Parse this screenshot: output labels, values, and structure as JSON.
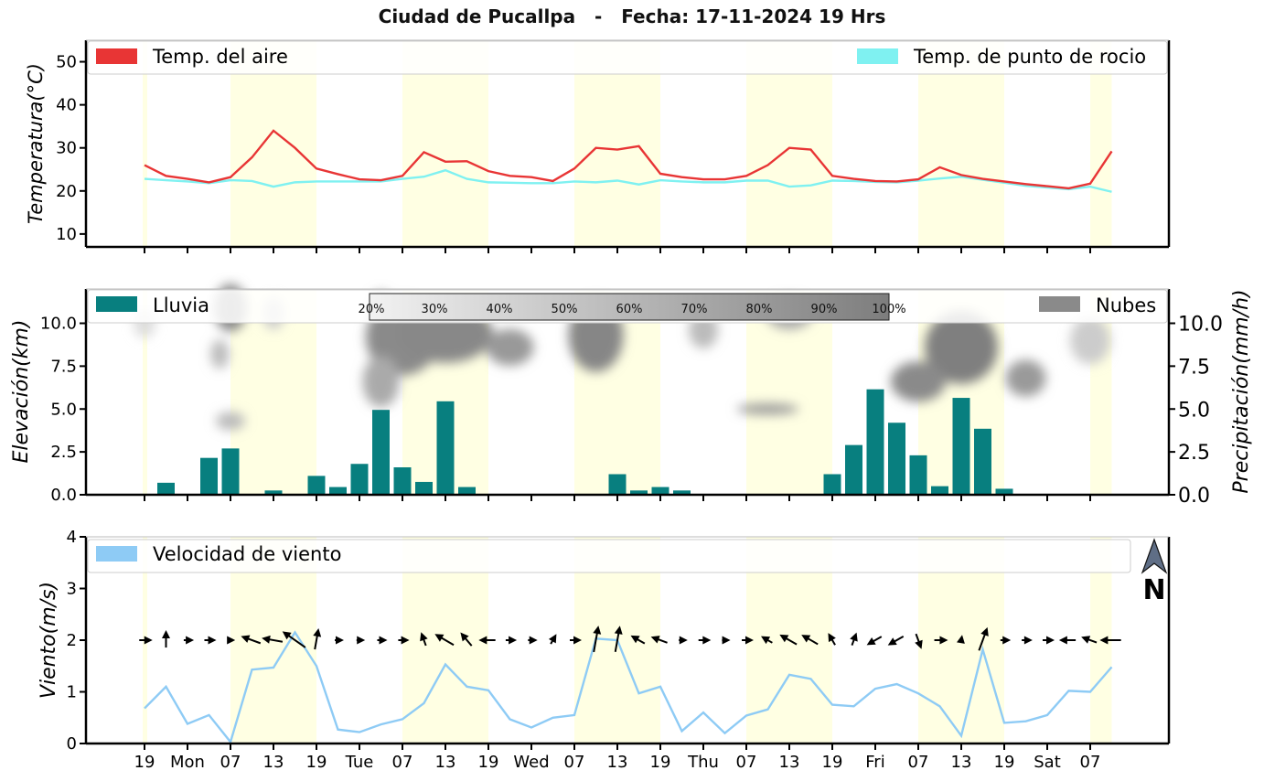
{
  "title": "Ciudad de Pucallpa   -   Fecha: 17-11-2024 19 Hrs",
  "chart_data": [
    {
      "type": "line",
      "panel": "temperature",
      "ylabel": "Temperatura(°C)",
      "ylim": [
        7,
        55
      ],
      "yticks": [
        10,
        20,
        30,
        40,
        50
      ],
      "legend": [
        "Temp. del aire",
        "Temp. de punto de rocio"
      ],
      "series": [
        {
          "name": "Temp. del aire",
          "color": "#e83535",
          "values": [
            26,
            23.5,
            22.8,
            22,
            23.2,
            27.8,
            34,
            30,
            25.2,
            23.9,
            22.7,
            22.5,
            23.5,
            29,
            26.8,
            26.9,
            24.6,
            23.5,
            23.2,
            22.3,
            25.2,
            30,
            29.6,
            30.4,
            24,
            23.2,
            22.7,
            22.7,
            23.5,
            26,
            30,
            29.6,
            23.5,
            22.8,
            22.3,
            22.2,
            22.7,
            25.5,
            23.7,
            22.8,
            22.2,
            21.6,
            21.1,
            20.6,
            21.7,
            29.2
          ]
        },
        {
          "name": "Temp. de punto de rocio",
          "color": "#7ff1f1",
          "values": [
            22.8,
            22.5,
            22.2,
            21.8,
            22.5,
            22.3,
            21,
            22,
            22.2,
            22.2,
            22.2,
            22.2,
            22.8,
            23.3,
            24.8,
            22.8,
            22,
            21.9,
            21.8,
            21.8,
            22.2,
            22,
            22.4,
            21.5,
            22.5,
            22.2,
            22,
            22,
            22.4,
            22.4,
            21,
            21.3,
            22.4,
            22.3,
            22.1,
            22,
            22.4,
            22.9,
            23.3,
            22.6,
            21.9,
            21.2,
            20.8,
            20.4,
            21,
            19.8
          ]
        }
      ]
    },
    {
      "type": "bar",
      "panel": "precipitation",
      "ylabel_left": "Elevación(km)",
      "ylabel_right": "Precipitación(mm/h)",
      "ylim": [
        0,
        12
      ],
      "yticks": [
        "0.0",
        "2.5",
        "5.0",
        "7.5",
        "10.0"
      ],
      "legend": [
        "Lluvia",
        "Nubes"
      ],
      "colorbar_labels": [
        "20%",
        "30%",
        "40%",
        "50%",
        "60%",
        "70%",
        "80%",
        "90%",
        "100%"
      ],
      "series": [
        {
          "name": "Lluvia",
          "color": "#087f7f",
          "values": [
            0,
            0.7,
            0.05,
            2.15,
            2.7,
            0,
            0.25,
            0.05,
            1.1,
            0.45,
            1.8,
            4.95,
            1.6,
            0.75,
            5.45,
            0.45,
            0,
            0,
            0,
            0,
            0,
            0,
            1.2,
            0.25,
            0.45,
            0.25,
            0,
            0,
            0,
            0,
            0,
            0,
            1.2,
            2.9,
            6.15,
            4.2,
            2.3,
            0.5,
            5.65,
            3.85,
            0.35,
            0,
            0,
            0,
            0,
            0
          ]
        }
      ]
    },
    {
      "type": "line",
      "panel": "wind",
      "ylabel": "Viento(m/s)",
      "ylim": [
        0,
        4
      ],
      "yticks": [
        0,
        1,
        2,
        3,
        4
      ],
      "legend": [
        "Velocidad de viento"
      ],
      "north_label": "N",
      "series": [
        {
          "name": "Velocidad de viento",
          "color": "#8ecbf5",
          "values": [
            0.68,
            1.1,
            0.38,
            0.55,
            0.03,
            1.43,
            1.47,
            2.15,
            1.5,
            0.27,
            0.22,
            0.37,
            0.47,
            0.78,
            1.53,
            1.1,
            1.03,
            0.47,
            0.31,
            0.5,
            0.55,
            2.03,
            2.0,
            0.97,
            1.1,
            0.24,
            0.6,
            0.2,
            0.54,
            0.66,
            1.33,
            1.25,
            0.75,
            0.72,
            1.06,
            1.15,
            0.97,
            0.72,
            0.15,
            1.82,
            0.4,
            0.43,
            0.55,
            1.02,
            1.0,
            1.48
          ]
        },
        {
          "name": "Dirección de viento (grados)",
          "values": [
            90,
            0,
            90,
            90,
            90,
            290,
            280,
            305,
            10,
            90,
            90,
            90,
            90,
            340,
            300,
            320,
            270,
            90,
            90,
            30,
            90,
            10,
            10,
            300,
            290,
            90,
            90,
            90,
            90,
            300,
            300,
            300,
            330,
            20,
            240,
            240,
            160,
            90,
            10,
            20,
            90,
            90,
            90,
            270,
            290,
            270
          ]
        }
      ]
    }
  ],
  "x_axis": {
    "tick_labels": [
      "19",
      "Mon",
      "07",
      "13",
      "19",
      "Tue",
      "07",
      "13",
      "19",
      "Wed",
      "07",
      "13",
      "19",
      "Thu",
      "07",
      "13",
      "19",
      "Fri",
      "07",
      "13",
      "19",
      "Sat",
      "07"
    ]
  }
}
